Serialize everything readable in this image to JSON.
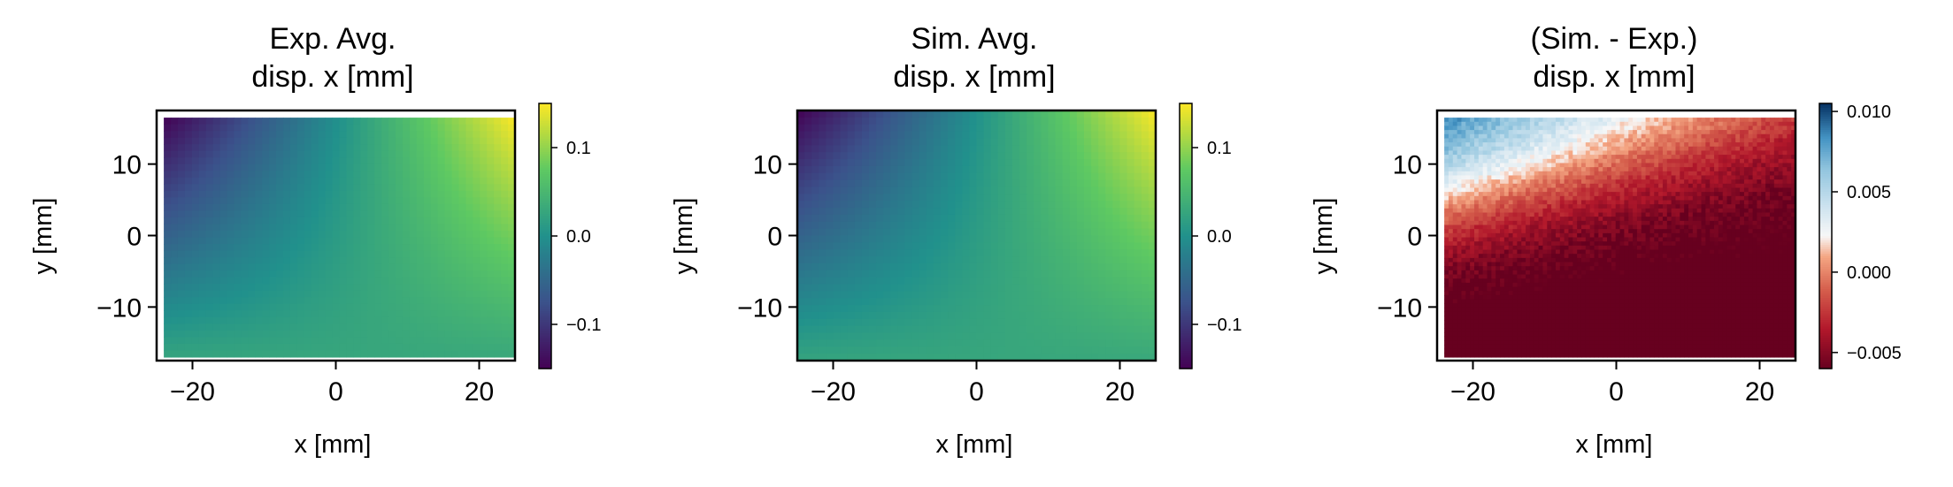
{
  "figure": {
    "panels": [
      {
        "title_lines": [
          "Exp. Avg.",
          "disp. x [mm]"
        ],
        "xlabel": "x [mm]",
        "ylabel": "y [mm]",
        "colormap": "viridis",
        "cbar_ticks": [
          "0.1",
          "0.0",
          "−0.1"
        ]
      },
      {
        "title_lines": [
          "Sim. Avg.",
          "disp. x [mm]"
        ],
        "xlabel": "x [mm]",
        "ylabel": "y [mm]",
        "colormap": "viridis",
        "cbar_ticks": [
          "0.1",
          "0.0",
          "−0.1"
        ]
      },
      {
        "title_lines": [
          "(Sim. - Exp.)",
          "disp. x [mm]"
        ],
        "xlabel": "x [mm]",
        "ylabel": "y [mm]",
        "colormap": "RdBu",
        "cbar_ticks": [
          "0.010",
          "0.005",
          "0.000",
          "−0.005"
        ]
      }
    ]
  },
  "chart_data": [
    {
      "type": "heatmap",
      "title": "Exp. Avg. disp. x [mm]",
      "xlabel": "x [mm]",
      "ylabel": "y [mm]",
      "xlim": [
        -25,
        25
      ],
      "ylim": [
        -17.5,
        17.5
      ],
      "xticks": [
        -20,
        0,
        20
      ],
      "yticks": [
        -10,
        0,
        10
      ],
      "xtick_labels": [
        "−20",
        "0",
        "20"
      ],
      "ytick_labels": [
        "−10",
        "0",
        "10"
      ],
      "data_extent": {
        "x": [
          -24,
          25
        ],
        "y": [
          -17,
          16.5
        ]
      },
      "clim": [
        -0.15,
        0.15
      ],
      "cbar_ticks": [
        0.1,
        0.0,
        -0.1
      ],
      "colormap": "viridis",
      "field": "bilinear",
      "corners": {
        "top_left": -0.15,
        "top_right": 0.15,
        "bottom_left": 0.025,
        "bottom_right": 0.03
      },
      "noise": 0
    },
    {
      "type": "heatmap",
      "title": "Sim. Avg. disp. x [mm]",
      "xlabel": "x [mm]",
      "ylabel": "y [mm]",
      "xlim": [
        -25,
        25
      ],
      "ylim": [
        -17.5,
        17.5
      ],
      "xticks": [
        -20,
        0,
        20
      ],
      "yticks": [
        -10,
        0,
        10
      ],
      "xtick_labels": [
        "−20",
        "0",
        "20"
      ],
      "ytick_labels": [
        "−10",
        "0",
        "10"
      ],
      "data_extent": {
        "x": [
          -25,
          25
        ],
        "y": [
          -17.5,
          17.5
        ]
      },
      "clim": [
        -0.15,
        0.15
      ],
      "cbar_ticks": [
        0.1,
        0.0,
        -0.1
      ],
      "colormap": "viridis",
      "field": "bilinear",
      "corners": {
        "top_left": -0.15,
        "top_right": 0.15,
        "bottom_left": 0.025,
        "bottom_right": 0.03
      },
      "noise": 0
    },
    {
      "type": "heatmap",
      "title": "(Sim. - Exp.) disp. x [mm]",
      "xlabel": "x [mm]",
      "ylabel": "y [mm]",
      "xlim": [
        -25,
        25
      ],
      "ylim": [
        -17.5,
        17.5
      ],
      "xticks": [
        -20,
        0,
        20
      ],
      "yticks": [
        -10,
        0,
        10
      ],
      "xtick_labels": [
        "−20",
        "0",
        "20"
      ],
      "ytick_labels": [
        "−10",
        "0",
        "10"
      ],
      "data_extent": {
        "x": [
          -24,
          25
        ],
        "y": [
          -17,
          16.5
        ]
      },
      "clim": [
        -0.006,
        0.0105
      ],
      "cbar_ticks": [
        0.01,
        0.005,
        0.0,
        -0.005
      ],
      "colormap": "RdBu",
      "field": "diagonal",
      "corners": {
        "top_left": 0.01,
        "top_right": 0.001,
        "bottom_left": -0.006,
        "bottom_right": -0.0055
      },
      "noise": 0.0008
    }
  ]
}
